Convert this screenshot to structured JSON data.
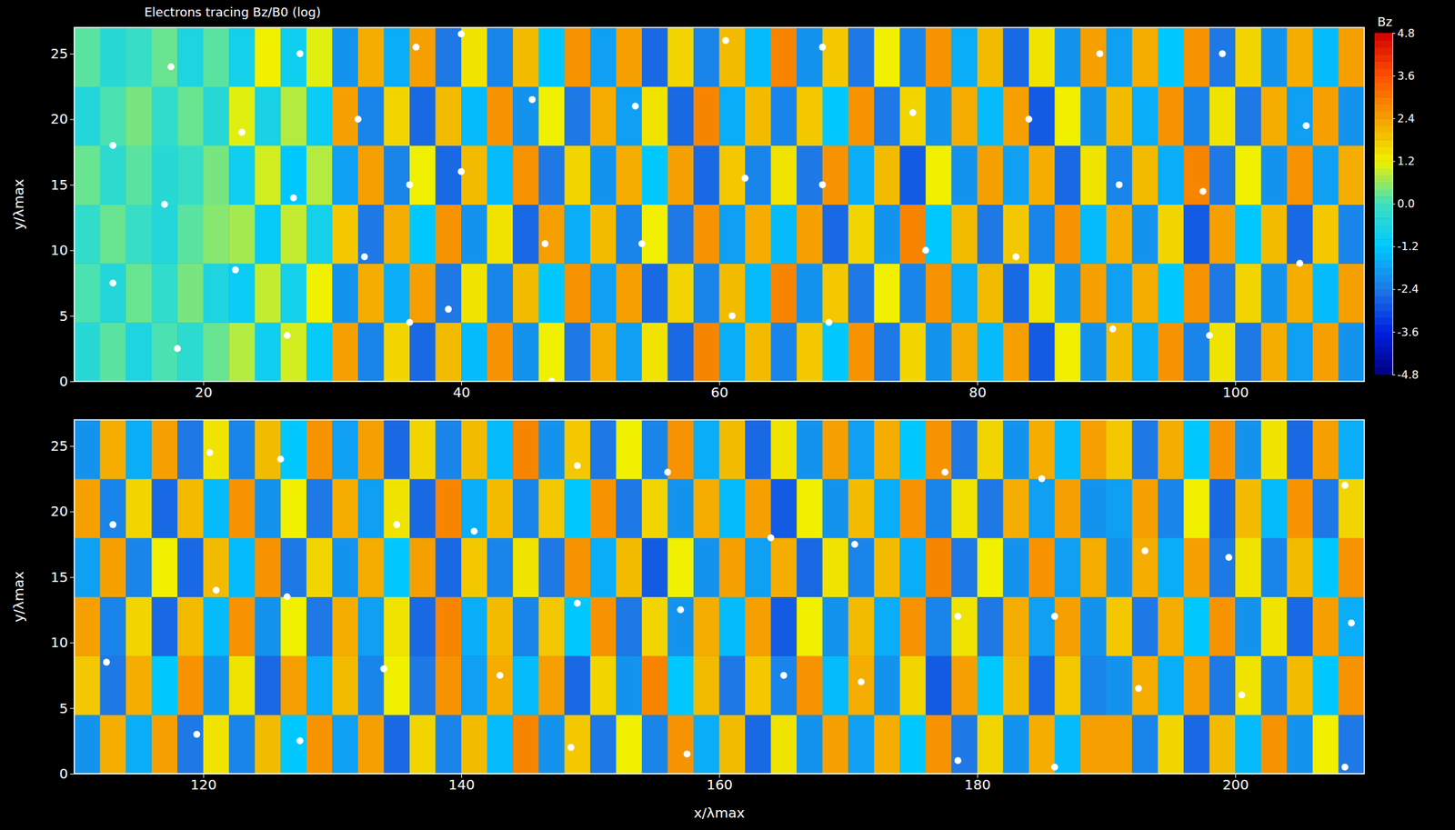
{
  "chart_data": [
    {
      "type": "heatmap",
      "title": "Electrons tracing  Bz/B0 (log)",
      "y_label": "y/λmax",
      "xlim": [
        10,
        110
      ],
      "xticks": [
        20,
        40,
        60,
        80,
        100
      ],
      "ylim": [
        0,
        27
      ],
      "yticks": [
        0,
        5,
        10,
        15,
        20,
        25
      ],
      "colorbar": {
        "title": "Bz",
        "range": [
          -4.8,
          4.8
        ],
        "ticks": [
          -4.8,
          -3.6,
          -2.4,
          -1.2,
          {
            "value": 0,
            "label": "0.0"
          },
          1.2,
          2.4,
          3.6,
          4.8
        ]
      },
      "z": [
        [
          -0.4,
          0.2,
          -0.6,
          0.1,
          -0.3,
          0.3,
          0.8,
          -0.9,
          1.0,
          -1.1,
          2.4,
          -2.2,
          1.6,
          -2.6,
          2.0,
          -1.4,
          2.6,
          -2.0,
          1.2,
          -2.4,
          2.2,
          -1.8,
          1.4,
          -2.6,
          2.8,
          -1.6,
          2.0,
          -2.2,
          1.8,
          -1.2,
          2.6,
          -2.4,
          1.6,
          -2.0,
          2.2,
          -1.4,
          2.4,
          -2.8,
          1.2,
          -2.0,
          2.0,
          -1.6,
          2.6,
          -2.2,
          1.4,
          -2.4,
          2.2,
          -1.8,
          2.4,
          -2.0
        ],
        [
          0.1,
          -0.5,
          0.3,
          -0.2,
          0.4,
          -0.6,
          -1.0,
          0.9,
          -0.8,
          1.2,
          -2.0,
          2.2,
          -1.6,
          2.4,
          -2.4,
          1.4,
          -2.2,
          2.0,
          -1.2,
          2.6,
          -1.8,
          2.4,
          -2.6,
          1.6,
          -2.2,
          2.0,
          -1.4,
          2.8,
          -2.0,
          1.8,
          -2.4,
          1.2,
          -2.2,
          2.6,
          -1.6,
          2.0,
          -2.6,
          1.4,
          -2.0,
          2.4,
          -1.8,
          2.2,
          -1.2,
          2.6,
          -2.4,
          1.6,
          -2.0,
          2.2,
          -1.4,
          2.4
        ],
        [
          -0.2,
          0.3,
          -0.1,
          -0.5,
          0.2,
          0.5,
          0.7,
          -1.1,
          0.9,
          -0.8,
          1.8,
          -2.4,
          2.2,
          -1.2,
          2.6,
          -2.0,
          1.4,
          -2.6,
          2.4,
          -1.6,
          2.0,
          -2.2,
          1.2,
          -2.4,
          2.6,
          -1.8,
          2.2,
          -1.4,
          2.4,
          -2.6,
          1.6,
          -2.0,
          2.8,
          -1.2,
          2.0,
          -2.4,
          1.8,
          -2.2,
          2.6,
          -1.4,
          2.2,
          -2.0,
          1.6,
          -2.8,
          2.4,
          -1.2,
          2.0,
          -2.6,
          1.8,
          -2.2
        ],
        [
          0.3,
          -0.3,
          0.2,
          -0.4,
          -0.1,
          0.4,
          -0.9,
          1.0,
          -1.2,
          0.8,
          -1.8,
          2.4,
          -2.2,
          1.2,
          -2.6,
          2.0,
          -1.4,
          2.6,
          -2.4,
          1.6,
          -2.0,
          2.2,
          -1.2,
          2.4,
          -2.6,
          1.8,
          -2.2,
          1.4,
          -2.4,
          2.6,
          -1.6,
          2.0,
          -2.8,
          1.2,
          -2.0,
          2.4,
          -1.8,
          2.2,
          -2.6,
          1.4,
          -2.2,
          2.0,
          -1.6,
          2.8,
          -2.4,
          1.2,
          -2.0,
          2.6,
          -1.8,
          2.2
        ],
        [
          -0.5,
          0.1,
          0.4,
          -0.2,
          0.3,
          -0.4,
          1.1,
          -0.7,
          0.8,
          -1.0,
          2.4,
          -2.2,
          1.6,
          -2.6,
          2.0,
          -1.4,
          2.6,
          -2.0,
          1.2,
          -2.4,
          2.2,
          -1.8,
          1.4,
          -2.6,
          2.8,
          -1.6,
          2.0,
          -2.2,
          1.8,
          -1.2,
          2.6,
          -2.4,
          1.6,
          -2.0,
          2.2,
          -1.4,
          2.4,
          -2.8,
          1.2,
          -2.0,
          2.0,
          -1.6,
          2.6,
          -2.2,
          1.4,
          -2.4,
          2.2,
          -1.8,
          2.4,
          -2.0
        ],
        [
          0.2,
          -0.4,
          -0.1,
          0.3,
          -0.6,
          0.2,
          -0.8,
          1.2,
          -0.9,
          1.1,
          -2.0,
          2.2,
          -1.6,
          2.4,
          -2.4,
          1.4,
          -2.2,
          2.0,
          -1.2,
          2.6,
          -1.8,
          2.4,
          -2.6,
          1.6,
          -2.2,
          2.0,
          -1.4,
          2.8,
          -2.0,
          1.8,
          -2.4,
          1.2,
          -2.2,
          2.6,
          -1.6,
          2.0,
          -2.6,
          1.4,
          -2.0,
          2.4,
          -1.8,
          2.2,
          -1.2,
          2.6,
          -2.4,
          1.6,
          -2.0,
          2.2,
          -1.4,
          2.4
        ]
      ],
      "particles": {
        "x": [
          13,
          13,
          17,
          17.5,
          18,
          22.5,
          23,
          26.5,
          27,
          27.5,
          32,
          32.5,
          36,
          36,
          36.5,
          39,
          40,
          40,
          45.5,
          46.5,
          53.5,
          54,
          60.5,
          61,
          62,
          68,
          68.5,
          68,
          75,
          76,
          83,
          84,
          89.5,
          90.5,
          91,
          97.5,
          98,
          99,
          105,
          105.5,
          47
        ],
        "y": [
          7.5,
          18,
          13.5,
          24,
          2.5,
          8.5,
          19,
          3.5,
          14,
          25,
          20,
          9.5,
          4.5,
          15,
          25.5,
          5.5,
          16,
          26.5,
          21.5,
          10.5,
          21,
          10.5,
          26,
          5,
          15.5,
          15,
          4.5,
          25.5,
          20.5,
          10,
          9.5,
          20,
          25,
          4,
          15,
          14.5,
          3.5,
          25,
          9,
          19.5,
          0
        ]
      }
    },
    {
      "type": "heatmap",
      "x_label": "x/λmax",
      "y_label": "y/λmax",
      "xlim": [
        110,
        210
      ],
      "xticks": [
        120,
        140,
        160,
        180,
        200
      ],
      "ylim": [
        0,
        27
      ],
      "yticks": [
        0,
        5,
        10,
        15,
        20,
        25
      ],
      "z": [
        [
          -2.0,
          2.2,
          -1.6,
          2.4,
          -2.4,
          1.4,
          -2.2,
          2.0,
          -1.2,
          2.6,
          -1.8,
          2.4,
          -2.6,
          1.6,
          -2.2,
          2.0,
          -1.4,
          2.8,
          -2.0,
          1.8,
          -2.4,
          1.2,
          -2.2,
          2.6,
          -1.6,
          2.0,
          -2.6,
          1.4,
          -2.0,
          2.4,
          -1.8,
          2.2,
          -1.2,
          2.6,
          -2.4,
          1.6,
          -2.0,
          2.2,
          -1.4,
          2.4,
          2.4,
          -2.2,
          1.6,
          -2.6,
          2.0,
          -1.4,
          2.6,
          -2.0,
          1.2,
          -2.4
        ],
        [
          1.8,
          -2.4,
          2.2,
          -1.2,
          2.6,
          -2.0,
          1.4,
          -2.6,
          2.4,
          -1.6,
          2.0,
          -2.2,
          1.2,
          -2.4,
          2.6,
          -1.8,
          2.2,
          -1.4,
          2.4,
          -2.6,
          1.6,
          -2.0,
          2.8,
          -1.2,
          2.0,
          -2.4,
          1.8,
          -2.2,
          2.6,
          -1.4,
          2.2,
          -2.0,
          1.6,
          -2.8,
          2.4,
          -1.2,
          2.0,
          -2.6,
          1.8,
          -2.2,
          -2.0,
          2.2,
          -1.6,
          2.4,
          -2.4,
          1.4,
          -2.2,
          2.0,
          -1.2,
          2.6
        ],
        [
          2.4,
          -2.2,
          1.6,
          -2.6,
          2.0,
          -1.4,
          2.6,
          -2.0,
          1.2,
          -2.4,
          2.2,
          -1.8,
          1.4,
          -2.6,
          2.8,
          -1.6,
          2.0,
          -2.2,
          1.8,
          -1.2,
          2.6,
          -2.4,
          1.6,
          -2.0,
          2.2,
          -1.4,
          2.4,
          -2.8,
          1.2,
          -2.0,
          2.0,
          -1.6,
          2.6,
          -2.2,
          1.4,
          -2.4,
          2.2,
          -1.8,
          2.4,
          -2.0,
          1.8,
          -2.4,
          2.2,
          -1.2,
          2.6,
          -2.0,
          1.4,
          -2.6,
          2.4,
          -1.6
        ],
        [
          -1.8,
          2.4,
          -2.2,
          1.2,
          -2.6,
          2.0,
          -1.4,
          2.6,
          -2.4,
          1.6,
          -2.0,
          2.2,
          -1.2,
          2.4,
          -2.6,
          1.8,
          -2.2,
          1.4,
          -2.4,
          2.6,
          -1.6,
          2.0,
          -2.8,
          1.2,
          -2.0,
          2.4,
          -1.8,
          2.2,
          -2.6,
          1.4,
          -2.2,
          2.0,
          -1.6,
          2.8,
          -2.4,
          1.2,
          -2.0,
          2.6,
          -1.8,
          2.2,
          -2.0,
          2.2,
          -1.6,
          2.4,
          -2.4,
          1.4,
          -2.2,
          2.0,
          -1.2,
          2.6
        ],
        [
          2.4,
          -2.2,
          1.6,
          -2.6,
          2.0,
          -1.4,
          2.6,
          -2.0,
          1.2,
          -2.4,
          2.2,
          -1.8,
          1.4,
          -2.6,
          2.8,
          -1.6,
          2.0,
          -2.2,
          1.8,
          -1.2,
          2.6,
          -2.4,
          1.6,
          -2.0,
          2.2,
          -1.4,
          2.4,
          -2.8,
          1.2,
          -2.0,
          2.0,
          -1.6,
          2.6,
          -2.2,
          1.4,
          -2.4,
          2.2,
          -1.8,
          2.4,
          -2.0,
          -1.8,
          2.4,
          -2.2,
          1.2,
          -2.6,
          2.0,
          -1.4,
          2.6,
          -2.4,
          1.6
        ],
        [
          -2.0,
          2.2,
          -1.6,
          2.4,
          -2.4,
          1.4,
          -2.2,
          2.0,
          -1.2,
          2.6,
          -1.8,
          2.4,
          -2.6,
          1.6,
          -2.2,
          2.0,
          -1.4,
          2.8,
          -2.0,
          1.8,
          -2.4,
          1.2,
          -2.2,
          2.6,
          -1.6,
          2.0,
          -2.6,
          1.4,
          -2.0,
          2.4,
          -1.8,
          2.2,
          -1.2,
          2.6,
          -2.4,
          1.6,
          -2.0,
          2.2,
          -1.4,
          2.4,
          1.8,
          -2.4,
          2.2,
          -1.2,
          2.6,
          -2.0,
          1.4,
          -2.6,
          2.4,
          -1.6
        ]
      ],
      "particles": {
        "x": [
          112.5,
          113,
          119.5,
          120.5,
          121,
          126,
          126.5,
          127.5,
          134,
          135,
          141,
          143,
          148.5,
          149,
          149,
          156,
          157,
          157.5,
          164,
          165,
          170.5,
          171,
          177.5,
          178.5,
          178.5,
          185,
          186,
          186,
          192.5,
          193,
          199.5,
          200.5,
          208.5,
          209,
          208.5
        ],
        "y": [
          8.5,
          19,
          3,
          24.5,
          14,
          24,
          13.5,
          2.5,
          8,
          19,
          18.5,
          7.5,
          2,
          13,
          23.5,
          23,
          12.5,
          1.5,
          18,
          7.5,
          17.5,
          7,
          23,
          12,
          1,
          22.5,
          12,
          0.5,
          6.5,
          17,
          16.5,
          6,
          22,
          11.5,
          0.5
        ]
      }
    }
  ]
}
